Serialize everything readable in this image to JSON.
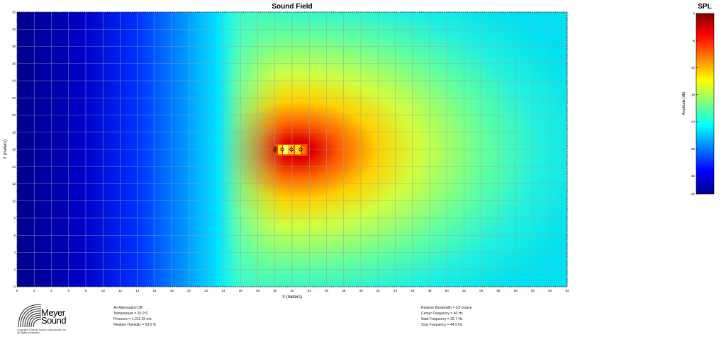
{
  "chart_data": {
    "type": "heatmap",
    "title": "Sound Field",
    "xlabel": "X (meters)",
    "ylabel": "Y (meters)",
    "xlim": [
      0,
      64
    ],
    "ylim": [
      0,
      32
    ],
    "x_ticks": [
      "0",
      "2",
      "4",
      "6",
      "8",
      "10",
      "12",
      "14",
      "16",
      "18",
      "20",
      "22",
      "24",
      "26",
      "28",
      "30",
      "32",
      "34",
      "36",
      "38",
      "40",
      "42",
      "44",
      "46",
      "48",
      "50",
      "52",
      "54",
      "56",
      "58",
      "60",
      "62",
      "64"
    ],
    "y_ticks": [
      "0",
      "2",
      "4",
      "6",
      "8",
      "10",
      "12",
      "14",
      "16",
      "18",
      "20",
      "22",
      "24",
      "26",
      "28",
      "30",
      "32"
    ],
    "grid": true,
    "source": {
      "x": 31.5,
      "y": 16,
      "label": "array"
    },
    "colorbar": {
      "title": "SPL",
      "label": "Amplitude (dB)",
      "range": [
        -40,
        0
      ],
      "ticks": [
        "0",
        "-6",
        "-12",
        "-18",
        "-24",
        "-30",
        "-36",
        "-40"
      ]
    },
    "colors": [
      "#00008f",
      "#0000ff",
      "#00ffff",
      "#ffff00",
      "#ff0000",
      "#800000"
    ]
  },
  "logo": {
    "line1": "Meyer",
    "line2": "Sound",
    "copyright": "Copyright © Meyer Sound Laboratories, Inc.",
    "rights": "All Rights Reserved"
  },
  "info_left": [
    "Air Attenuation Off",
    "Temperature = 20.0°C",
    "Pressure = 1,013.25 mb",
    "Relative Humidity = 50.0 %"
  ],
  "info_right": [
    "Relative Bandwidth = 1/3 octave",
    "Center Frequency = 40 Hz",
    "Start Frequency = 35.7 Hz",
    "Stop Frequency = 44.9 Hz"
  ]
}
